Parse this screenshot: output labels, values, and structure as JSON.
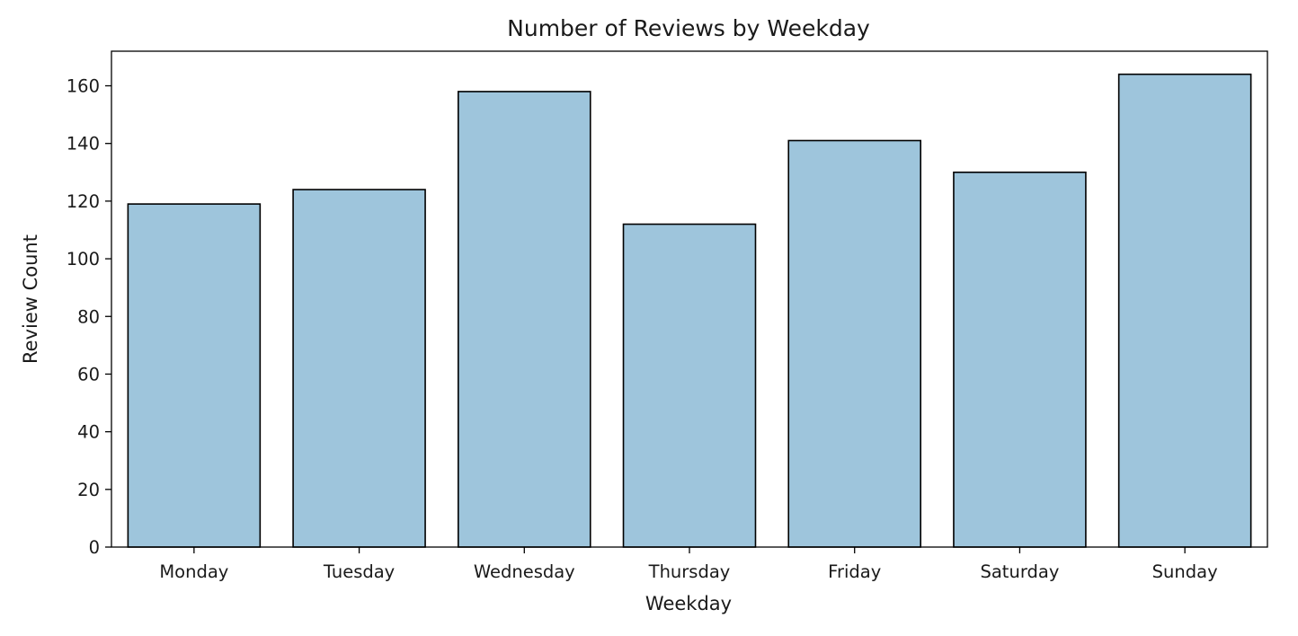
{
  "chart_data": {
    "type": "bar",
    "title": "Number of Reviews by Weekday",
    "xlabel": "Weekday",
    "ylabel": "Review Count",
    "categories": [
      "Monday",
      "Tuesday",
      "Wednesday",
      "Thursday",
      "Friday",
      "Saturday",
      "Sunday"
    ],
    "values": [
      119,
      124,
      158,
      112,
      141,
      130,
      164
    ],
    "ylim": [
      0,
      172
    ],
    "yticks": [
      0,
      20,
      40,
      60,
      80,
      100,
      120,
      140,
      160
    ],
    "grid": false,
    "legend": "none",
    "colors": {
      "bar_fill": "#9ec5dc",
      "bar_edge": "#000000",
      "axis": "#000000"
    }
  }
}
